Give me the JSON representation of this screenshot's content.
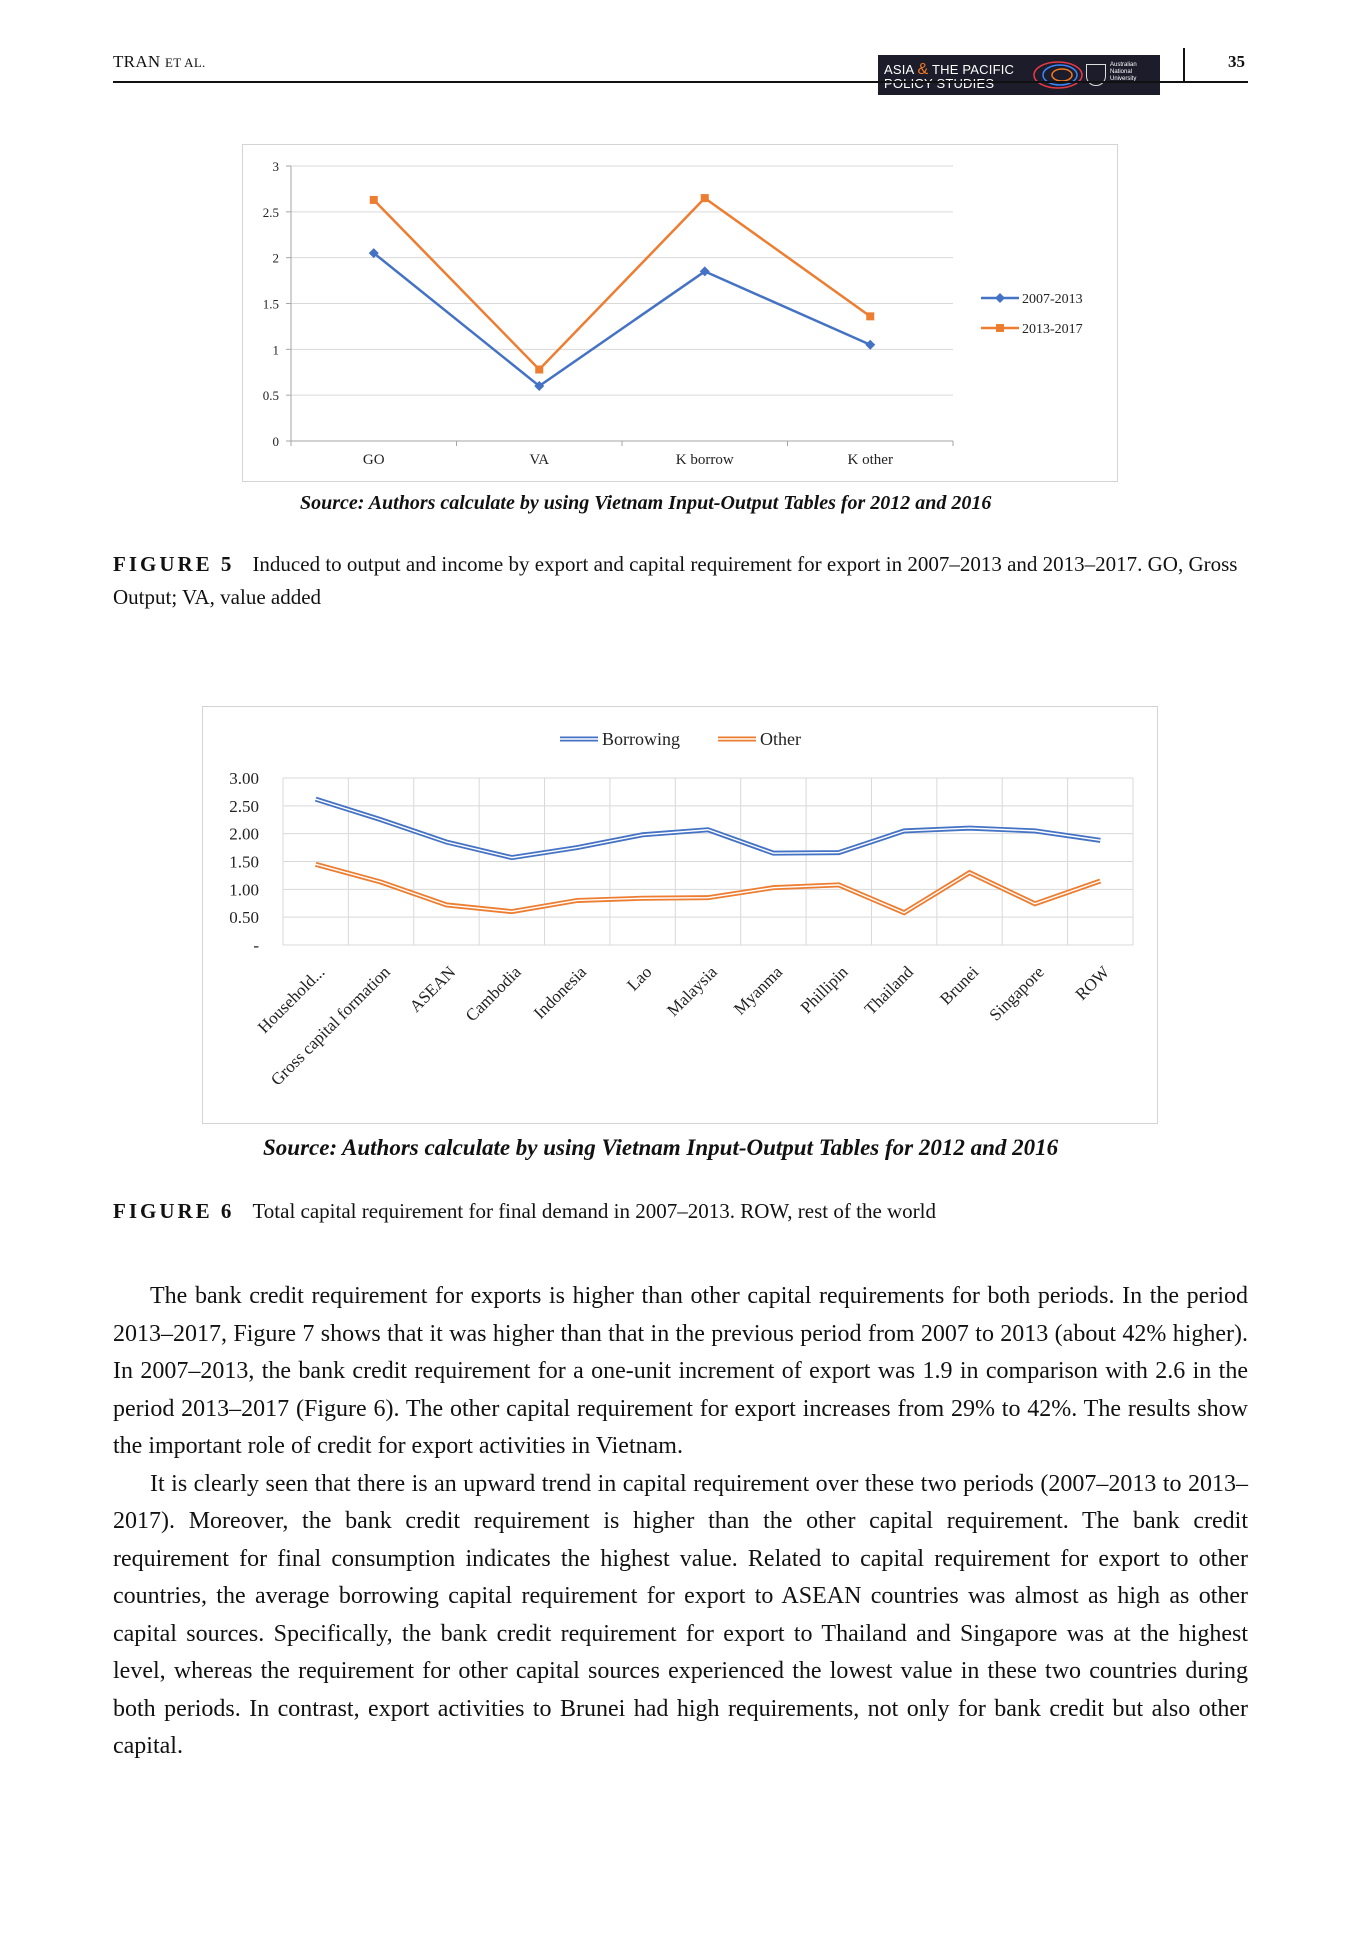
{
  "header": {
    "authors_main": "TRAN",
    "authors_etal": "ET AL.",
    "journal_line1a": "ASIA ",
    "journal_amp": "&",
    "journal_line1b": " THE PACIFIC",
    "journal_line2": "POLICY STUDIES",
    "university_line1": "Australian",
    "university_line2": "National",
    "university_line3": "University",
    "page_number": "35"
  },
  "figure5": {
    "source": "Source: Authors calculate by using Vietnam Input-Output Tables for 2012 and 2016",
    "label": "FIGURE 5",
    "caption": "Induced to output and income by export and capital requirement for export in 2007–2013 and 2013–2017. GO, Gross Output; VA, value added"
  },
  "figure6": {
    "source": "Source: Authors calculate by using Vietnam Input-Output Tables for 2012 and 2016",
    "label": "FIGURE 6",
    "caption": "Total capital requirement for final demand in 2007–2013. ROW, rest of the world"
  },
  "colors": {
    "blue": "#4472c4",
    "orange": "#ed7d31",
    "grid": "#d9d9d9",
    "axis": "#a6a6a6"
  },
  "chart_data": [
    {
      "type": "line",
      "categories": [
        "GO",
        "VA",
        "K borrow",
        "K other"
      ],
      "series": [
        {
          "name": "2007-2013",
          "values": [
            2.05,
            0.6,
            1.85,
            1.05
          ],
          "color": "#4472c4",
          "marker": "diamond"
        },
        {
          "name": "2013-2017",
          "values": [
            2.63,
            0.78,
            2.65,
            1.36
          ],
          "color": "#ed7d31",
          "marker": "square"
        }
      ],
      "ylim": [
        0,
        3
      ],
      "yticks": [
        "0",
        "0.5",
        "1",
        "1.5",
        "2",
        "2.5",
        "3"
      ],
      "grid": true,
      "legend": "right"
    },
    {
      "type": "line",
      "categories": [
        "Household...",
        "Gross capital formation",
        "ASEAN",
        "Cambodia",
        "Indonesia",
        "Lao",
        "Malaysia",
        "Myanma",
        "Phillipin",
        "Thailand",
        "Brunei",
        "Singapore",
        "ROW"
      ],
      "series": [
        {
          "name": "Borrowing",
          "values": [
            2.62,
            2.25,
            1.85,
            1.57,
            1.75,
            1.98,
            2.07,
            1.65,
            1.66,
            2.05,
            2.1,
            2.05,
            1.88
          ],
          "color": "#4472c4"
        },
        {
          "name": "Other",
          "values": [
            1.45,
            1.13,
            0.72,
            0.6,
            0.8,
            0.84,
            0.85,
            1.03,
            1.08,
            0.58,
            1.3,
            0.74,
            1.15
          ],
          "color": "#ed7d31"
        }
      ],
      "ylim": [
        0,
        3
      ],
      "yticks": [
        "-",
        "0.50",
        "1.00",
        "1.50",
        "2.00",
        "2.50",
        "3.00"
      ],
      "grid": true,
      "legend": "top"
    }
  ],
  "body": {
    "p1": "The bank credit requirement for exports is higher than other capital requirements for both periods. In the period 2013–2017, Figure 7 shows that it was higher than that in the previous period from 2007 to 2013 (about 42% higher). In 2007–2013, the bank credit requirement for a one-unit increment of export was 1.9 in comparison with 2.6 in the period 2013–2017 (Figure 6). The other capital requirement for export increases from 29% to 42%. The results show the important role of credit for export activities in Vietnam.",
    "p2": "It is clearly seen that there is an upward trend in capital requirement over these two periods (2007–2013 to 2013–2017). Moreover, the bank credit requirement is higher than the other capital requirement. The bank credit requirement for final consumption indicates the highest value. Related to capital requirement for export to other countries, the average borrowing capital requirement for export to ASEAN countries was almost as high as other capital sources. Specifically, the bank credit requirement for export to Thailand and Singapore was at the highest level, whereas the requirement for other capital sources experienced the lowest value in these two countries during both periods. In contrast, export activities to Brunei had high requirements, not only for bank credit but also other capital."
  }
}
